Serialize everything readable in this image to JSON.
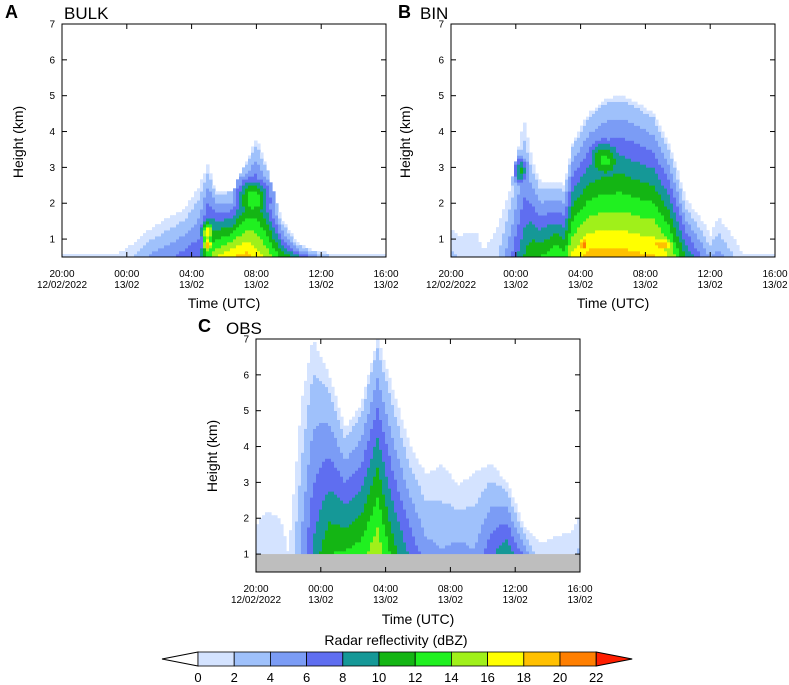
{
  "colors": [
    "#d4e3ff",
    "#9fc1fb",
    "#7b9cf5",
    "#5f6ef0",
    "#159897",
    "#14b514",
    "#20f020",
    "#a0f01a",
    "#ffff00",
    "#ffc000",
    "#ff7f00",
    "#ff1e00"
  ],
  "chart_data": [
    {
      "type": "heatmap",
      "panel_label": "A",
      "title": "BULK",
      "xlabel": "Time (UTC)",
      "ylabel": "Height (km)",
      "xlim": [
        -4,
        16
      ],
      "ylim": [
        0.5,
        7
      ],
      "x_ticks": [
        {
          "value": -4,
          "line1": "20:00",
          "line2": "12/02/2022"
        },
        {
          "value": 0,
          "line1": "00:00",
          "line2": "13/02"
        },
        {
          "value": 4,
          "line1": "04:00",
          "line2": "13/02"
        },
        {
          "value": 8,
          "line1": "08:00",
          "line2": "13/02"
        },
        {
          "value": 12,
          "line1": "12:00",
          "line2": "13/02"
        },
        {
          "value": 16,
          "line1": "16:00",
          "line2": "13/02"
        }
      ],
      "y_ticks": [
        "1",
        "2",
        "3",
        "4",
        "5",
        "6",
        "7"
      ],
      "x": [
        -0.5,
        0.5,
        1.5,
        2.5,
        3.5,
        4.5,
        5,
        5.5,
        6.5,
        7.5,
        8,
        8.5,
        9.5,
        10.5,
        11.5,
        12.5
      ],
      "tops": [
        0.6,
        0.9,
        1.3,
        1.6,
        1.8,
        2.5,
        3.1,
        2.3,
        2.3,
        3.3,
        3.8,
        3.2,
        1.6,
        0.9,
        0.7,
        0.6
      ],
      "peaks": [
        0.5,
        2.5,
        4.5,
        5.5,
        7,
        8,
        13,
        16,
        18,
        19,
        17,
        16,
        12,
        9,
        6,
        3
      ],
      "overlays": [
        {
          "x": 5,
          "y": 1.2,
          "sx": 0.5,
          "sy": 0.35,
          "v": 17.5
        },
        {
          "x": 5,
          "y": 0.85,
          "sx": 0.4,
          "sy": 0.25,
          "v": 19.5
        },
        {
          "x": 7.8,
          "y": 2.1,
          "sx": 1.2,
          "sy": 0.7,
          "v": 13.5
        }
      ]
    },
    {
      "type": "heatmap",
      "panel_label": "B",
      "title": "BIN",
      "xlabel": "Time (UTC)",
      "ylabel": "Height (km)",
      "xlim": [
        -4,
        16
      ],
      "ylim": [
        0.5,
        7
      ],
      "x_ticks": [
        {
          "value": -4,
          "line1": "20:00",
          "line2": "12/02/2022"
        },
        {
          "value": 0,
          "line1": "00:00",
          "line2": "13/02"
        },
        {
          "value": 4,
          "line1": "04:00",
          "line2": "13/02"
        },
        {
          "value": 8,
          "line1": "08:00",
          "line2": "13/02"
        },
        {
          "value": 12,
          "line1": "12:00",
          "line2": "13/02"
        },
        {
          "value": 16,
          "line1": "16:00",
          "line2": "13/02"
        }
      ],
      "y_ticks": [
        "1",
        "2",
        "3",
        "4",
        "5",
        "6",
        "7"
      ],
      "x": [
        -4,
        -3.5,
        -2.5,
        -2,
        -1.2,
        -0.3,
        0.5,
        1,
        1.5,
        2.5,
        3,
        3.5,
        4.5,
        5.5,
        6.5,
        7.5,
        8.5,
        9.5,
        10.5,
        11.5,
        12,
        12.5,
        13.5,
        14
      ],
      "tops": [
        1.3,
        1.1,
        1.2,
        0.7,
        1.2,
        2.5,
        4.3,
        3.2,
        2.6,
        2.6,
        2.5,
        3.7,
        4.5,
        4.9,
        5.0,
        4.8,
        4.5,
        3.6,
        2.1,
        1.5,
        1.1,
        1.6,
        1.0,
        0.6
      ],
      "peaks": [
        2.5,
        2,
        1,
        0.3,
        1.5,
        6,
        10,
        12,
        12,
        14,
        13,
        17,
        19,
        19,
        19,
        18.5,
        18.5,
        16,
        10,
        6,
        4,
        5,
        2,
        0.5
      ],
      "overlays": [
        {
          "x": 0.3,
          "y": 2.9,
          "sx": 0.5,
          "sy": 0.45,
          "v": 10.5
        },
        {
          "x": 5.5,
          "y": 3.2,
          "sx": 1.3,
          "sy": 0.7,
          "v": 12.5
        },
        {
          "x": 4.2,
          "y": 0.85,
          "sx": 0.45,
          "sy": 0.35,
          "v": 21
        },
        {
          "x": 9,
          "y": 0.85,
          "sx": 1.2,
          "sy": 0.35,
          "v": 19.5
        }
      ]
    },
    {
      "type": "heatmap",
      "panel_label": "C",
      "title": "OBS",
      "xlabel": "Time (UTC)",
      "ylabel": "Height (km)",
      "xlim": [
        -4,
        16
      ],
      "ylim": [
        0.5,
        7
      ],
      "x_ticks": [
        {
          "value": -4,
          "line1": "20:00",
          "line2": "12/02/2022"
        },
        {
          "value": 0,
          "line1": "00:00",
          "line2": "13/02"
        },
        {
          "value": 4,
          "line1": "04:00",
          "line2": "13/02"
        },
        {
          "value": 8,
          "line1": "08:00",
          "line2": "13/02"
        },
        {
          "value": 12,
          "line1": "12:00",
          "line2": "13/02"
        },
        {
          "value": 16,
          "line1": "16:00",
          "line2": "13/02"
        }
      ],
      "y_ticks": [
        "1",
        "2",
        "3",
        "4",
        "5",
        "6",
        "7"
      ],
      "x": [
        -4,
        -3.3,
        -2.5,
        -2,
        -1.2,
        -0.5,
        0.5,
        1.5,
        2.5,
        3.5,
        4.5,
        5.5,
        6.5,
        7.5,
        8.5,
        9.5,
        10.5,
        11.5,
        12.5,
        13.5,
        14.5,
        15.5,
        16
      ],
      "tops": [
        1.8,
        2.2,
        2.0,
        1.0,
        5.2,
        7,
        6,
        4.5,
        5.2,
        7,
        5.5,
        4.0,
        3.2,
        3.5,
        2.9,
        3.3,
        3.5,
        3.0,
        1.8,
        1.3,
        1.5,
        1.6,
        2.1
      ],
      "peaks": [
        0,
        1,
        0.8,
        1,
        5,
        9,
        13,
        14,
        14.5,
        17,
        12,
        9,
        6,
        5,
        6,
        5,
        9,
        12,
        9,
        2,
        1.5,
        1,
        4
      ],
      "overlays": [],
      "ground_mask_below_km": 1
    }
  ],
  "colorbar": {
    "title": "Radar reflectivity (dBZ)",
    "levels": [
      "0",
      "2",
      "4",
      "6",
      "8",
      "10",
      "12",
      "14",
      "16",
      "18",
      "20",
      "22"
    ]
  }
}
